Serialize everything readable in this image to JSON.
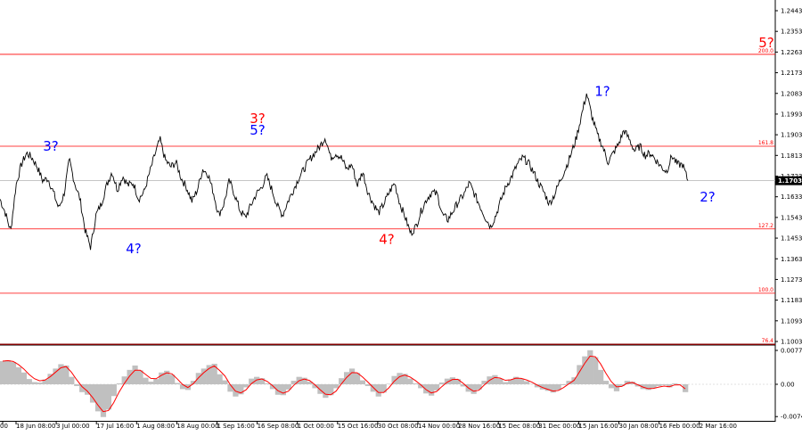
{
  "chart_data": [
    {
      "type": "line",
      "instrument_panel": "price",
      "y_ticks": [
        1.1003,
        1.1093,
        1.1183,
        1.1273,
        1.1363,
        1.1453,
        1.1543,
        1.1633,
        1.1723,
        1.1813,
        1.1903,
        1.1993,
        1.2083,
        1.2173,
        1.2263,
        1.2353,
        1.2443
      ],
      "y_tick_labels": [
        "1.1003",
        "1.1093",
        "1.1183",
        "1.1273",
        "1.1363",
        "1.1453",
        "1.1543",
        "1.1633",
        "1.1723",
        "1.1813",
        "1.1903",
        "1.1993",
        "1.2083",
        "1.2173",
        "1.2263",
        "1.2353",
        "1.2443"
      ],
      "ylim": [
        1.0991,
        1.2478
      ],
      "current_price": 1.1703,
      "current_price_label": "1.1703",
      "x_labels": [
        "18 Jun 08:00",
        "3 Jul 00:00",
        "17 Jul 16:00",
        "1 Aug 08:00",
        "18 Aug 00:00",
        "1 Sep 16:00",
        "16 Sep 08:00",
        "1 Oct 00:00",
        "15 Oct 16:00",
        "30 Oct 08:00",
        "14 Nov 00:00",
        "28 Nov 16:00",
        "15 Dec 08:00",
        "31 Dec 00:00",
        "15 Jan 16:00",
        "30 Jan 08:00",
        "16 Feb 00:00",
        "2 Mar 16:00"
      ],
      "x_label_first_fragment": "00",
      "fib_levels": [
        {
          "label": "200.0",
          "value": 1.2253
        },
        {
          "label": "161.8",
          "value": 1.1853
        },
        {
          "label": "127.2",
          "value": 1.1493
        },
        {
          "label": "100.0",
          "value": 1.1213
        },
        {
          "label": "76.4",
          "value": 1.0991
        }
      ],
      "wave_labels": [
        {
          "text": "3?",
          "color": "#0000ff",
          "at": "2 Jul",
          "price": 1.1833
        },
        {
          "text": "4?",
          "color": "#0000ff",
          "at": "31 Jul",
          "price": 1.1388
        },
        {
          "text": "3?",
          "color": "#ff0000",
          "at": "16 Sep",
          "price": 1.1953
        },
        {
          "text": "5?",
          "color": "#0000ff",
          "at": "16 Sep",
          "price": 1.1903
        },
        {
          "text": "4?",
          "color": "#ff0000",
          "at": "31 Oct",
          "price": 1.1428
        },
        {
          "text": "1?",
          "color": "#0000ff",
          "at": "27 Jan",
          "price": 1.2073
        },
        {
          "text": "2?",
          "color": "#0000ff",
          "at": "3 Mar",
          "price": 1.1613
        },
        {
          "text": "5?",
          "color": "#ff0000",
          "at": "7 Mar",
          "price": 1.2283
        }
      ],
      "series": [
        {
          "values": [
            1.1623,
            1.1563,
            1.1483,
            1.1683,
            1.1773,
            1.1823,
            1.1803,
            1.1763,
            1.1703,
            1.1713,
            1.1653,
            1.1583,
            1.1643,
            1.1793,
            1.1693,
            1.1623,
            1.1483,
            1.1413,
            1.1553,
            1.1603,
            1.1683,
            1.1743,
            1.1663,
            1.1723,
            1.1683,
            1.1693,
            1.1623,
            1.1653,
            1.1733,
            1.1813,
            1.1883,
            1.1793,
            1.1763,
            1.1783,
            1.1713,
            1.1673,
            1.1613,
            1.1663,
            1.1753,
            1.1733,
            1.1653,
            1.1553,
            1.1603,
            1.1703,
            1.1643,
            1.1573,
            1.1543,
            1.1593,
            1.1643,
            1.1673,
            1.1723,
            1.1663,
            1.1593,
            1.1553,
            1.1613,
            1.1663,
            1.1713,
            1.1753,
            1.1793,
            1.1823,
            1.1853,
            1.1893,
            1.1803,
            1.1823,
            1.1803,
            1.1753,
            1.1773,
            1.1683,
            1.1743,
            1.1653,
            1.1603,
            1.1563,
            1.1603,
            1.1653,
            1.1693,
            1.1603,
            1.1543,
            1.1473,
            1.1503,
            1.1573,
            1.1623,
            1.1653,
            1.1643,
            1.1553,
            1.1533,
            1.1573,
            1.1613,
            1.1643,
            1.1693,
            1.1643,
            1.1593,
            1.1543,
            1.1503,
            1.1553,
            1.1623,
            1.1683,
            1.1723,
            1.1773,
            1.1803,
            1.1783,
            1.1743,
            1.1693,
            1.1653,
            1.1603,
            1.1643,
            1.1703,
            1.1753,
            1.1813,
            1.1883,
            1.1983,
            1.2083,
            1.1983,
            1.1903,
            1.1853,
            1.1783,
            1.1823,
            1.1863,
            1.1923,
            1.1883,
            1.1833,
            1.1853,
            1.1813,
            1.1823,
            1.1793,
            1.1763,
            1.1743,
            1.1813,
            1.1773,
            1.1773,
            1.1703
          ]
        }
      ]
    },
    {
      "type": "area",
      "instrument_panel": "oscillator",
      "y_tick_labels": [
        "0.00776",
        "0.00",
        "-0.0074"
      ],
      "y_ticks": [
        0.00776,
        0.0,
        -0.0074
      ],
      "ylim": [
        -0.0079,
        0.0092
      ],
      "series": [
        {
          "values": [
            0.0053,
            0.0055,
            0.0051,
            0.0039,
            0.0027,
            0.0012,
            0.0005,
            0.0004,
            0.0011,
            0.0024,
            0.0036,
            0.0046,
            0.0043,
            0.0017,
            -0.0004,
            -0.0018,
            -0.0024,
            -0.0042,
            -0.0062,
            -0.0075,
            -0.0058,
            -0.0027,
            0.0002,
            0.0018,
            0.0033,
            0.0043,
            0.0032,
            0.0015,
            0.0006,
            0.0012,
            0.0027,
            0.0031,
            0.0022,
            0.0003,
            -0.0011,
            -0.0013,
            0.0008,
            0.0026,
            0.0036,
            0.0044,
            0.0047,
            0.0023,
            0.0009,
            -0.0017,
            -0.0028,
            -0.0023,
            -0.0007,
            0.0013,
            0.0017,
            0.0014,
            0.0002,
            -0.0011,
            -0.0024,
            -0.0025,
            -0.0012,
            0.0008,
            0.0017,
            0.0015,
            0.0006,
            -0.0009,
            -0.0022,
            -0.0031,
            -0.0025,
            -0.0009,
            0.0014,
            0.0028,
            0.0036,
            0.0026,
            0.0009,
            -0.0004,
            -0.0017,
            -0.0028,
            -0.0019,
            0.0001,
            0.0019,
            0.0026,
            0.0024,
            0.0013,
            0.0002,
            -0.0009,
            -0.0021,
            -0.0026,
            -0.0014,
            0.0004,
            0.0013,
            0.0016,
            0.0012,
            -0.0005,
            -0.0017,
            -0.0022,
            -0.0012,
            0.0008,
            0.0018,
            0.0021,
            0.0013,
            0.0005,
            0.0011,
            0.0017,
            0.0013,
            0.0007,
            0.0001,
            -0.0007,
            -0.0012,
            -0.0015,
            -0.0019,
            -0.0013,
            -0.0002,
            0.0008,
            0.0016,
            0.0044,
            0.0064,
            0.0078,
            0.0062,
            0.0033,
            0.0008,
            -0.0009,
            -0.0016,
            -0.0004,
            0.0008,
            0.0006,
            -0.0005,
            -0.0011,
            -0.0013,
            -0.0009,
            -0.0004,
            -0.0002,
            -0.0007,
            0.0002,
            -0.0001,
            -0.0018
          ]
        }
      ]
    }
  ]
}
